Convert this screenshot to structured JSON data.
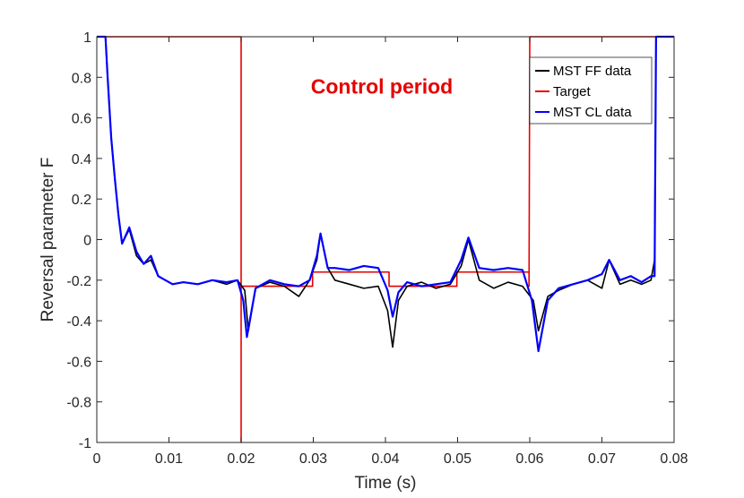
{
  "chart_data": {
    "type": "line",
    "title": "",
    "xlabel": "Time (s)",
    "ylabel": "Reversal parameter F",
    "xlim": [
      0,
      0.08
    ],
    "ylim": [
      -1,
      1
    ],
    "x_ticks": [
      0,
      0.01,
      0.02,
      0.03,
      0.04,
      0.05,
      0.06,
      0.07,
      0.08
    ],
    "x_tick_labels": [
      "0",
      "0.01",
      "0.02",
      "0.03",
      "0.04",
      "0.05",
      "0.06",
      "0.07",
      "0.08"
    ],
    "y_ticks": [
      -1,
      -0.8,
      -0.6,
      -0.4,
      -0.2,
      0,
      0.2,
      0.4,
      0.6,
      0.8,
      1
    ],
    "y_tick_labels": [
      "-1",
      "-0.8",
      "-0.6",
      "-0.4",
      "-0.2",
      "0",
      "0.2",
      "0.4",
      "0.6",
      "0.8",
      "1"
    ],
    "grid": false,
    "legend_position": "top-right",
    "annotation": {
      "text": "Control period",
      "x": 0.0395,
      "y": 0.72,
      "color": "#e60000"
    },
    "series": [
      {
        "name": "MST FF data",
        "color": "#000000",
        "x": [
          0.0,
          0.0012,
          0.0015,
          0.002,
          0.0025,
          0.003,
          0.0035,
          0.0045,
          0.0055,
          0.0065,
          0.0075,
          0.0085,
          0.0095,
          0.0105,
          0.012,
          0.014,
          0.016,
          0.018,
          0.0195,
          0.0205,
          0.021,
          0.022,
          0.024,
          0.026,
          0.028,
          0.0295,
          0.0305,
          0.031,
          0.032,
          0.033,
          0.035,
          0.037,
          0.039,
          0.0403,
          0.041,
          0.0418,
          0.043,
          0.045,
          0.047,
          0.049,
          0.0505,
          0.0515,
          0.053,
          0.055,
          0.057,
          0.059,
          0.0605,
          0.0612,
          0.0625,
          0.064,
          0.066,
          0.068,
          0.07,
          0.071,
          0.0725,
          0.074,
          0.0755,
          0.0768,
          0.0773,
          0.0775,
          0.08
        ],
        "y": [
          1.0,
          1.0,
          0.8,
          0.5,
          0.3,
          0.12,
          -0.02,
          0.05,
          -0.08,
          -0.12,
          -0.1,
          -0.18,
          -0.2,
          -0.22,
          -0.21,
          -0.22,
          -0.2,
          -0.22,
          -0.2,
          -0.25,
          -0.45,
          -0.24,
          -0.21,
          -0.23,
          -0.28,
          -0.2,
          -0.1,
          0.03,
          -0.14,
          -0.2,
          -0.22,
          -0.24,
          -0.23,
          -0.35,
          -0.53,
          -0.3,
          -0.23,
          -0.21,
          -0.24,
          -0.22,
          -0.13,
          0.0,
          -0.2,
          -0.24,
          -0.21,
          -0.23,
          -0.3,
          -0.45,
          -0.28,
          -0.25,
          -0.22,
          -0.2,
          -0.24,
          -0.1,
          -0.22,
          -0.2,
          -0.22,
          -0.2,
          -0.1,
          1.0,
          1.0
        ]
      },
      {
        "name": "Target",
        "color": "#e60000",
        "x": [
          0.0,
          0.02,
          0.02,
          0.02,
          0.0299,
          0.0299,
          0.0405,
          0.0405,
          0.0499,
          0.0499,
          0.0599,
          0.0599,
          0.06,
          0.0775,
          0.08
        ],
        "y": [
          1.0,
          1.0,
          -1.0,
          -0.23,
          -0.23,
          -0.16,
          -0.16,
          -0.23,
          -0.23,
          -0.16,
          -0.16,
          -0.23,
          1.0,
          1.0,
          1.0
        ]
      },
      {
        "name": "MST CL data",
        "color": "#0000ff",
        "x": [
          0.0,
          0.0012,
          0.0015,
          0.002,
          0.0025,
          0.003,
          0.0035,
          0.0045,
          0.0055,
          0.0065,
          0.0075,
          0.0085,
          0.0095,
          0.0105,
          0.012,
          0.014,
          0.016,
          0.018,
          0.0195,
          0.0203,
          0.0208,
          0.022,
          0.024,
          0.026,
          0.028,
          0.0295,
          0.0305,
          0.031,
          0.032,
          0.033,
          0.035,
          0.037,
          0.039,
          0.0403,
          0.041,
          0.0418,
          0.043,
          0.045,
          0.047,
          0.049,
          0.0505,
          0.0515,
          0.053,
          0.055,
          0.057,
          0.059,
          0.0603,
          0.0612,
          0.0625,
          0.064,
          0.066,
          0.068,
          0.07,
          0.071,
          0.0725,
          0.074,
          0.0755,
          0.0768,
          0.0773,
          0.0775,
          0.08
        ],
        "y": [
          1.0,
          1.0,
          0.8,
          0.5,
          0.3,
          0.12,
          -0.02,
          0.06,
          -0.06,
          -0.12,
          -0.08,
          -0.18,
          -0.2,
          -0.22,
          -0.21,
          -0.22,
          -0.2,
          -0.21,
          -0.2,
          -0.3,
          -0.48,
          -0.24,
          -0.2,
          -0.22,
          -0.23,
          -0.2,
          -0.08,
          0.03,
          -0.14,
          -0.14,
          -0.15,
          -0.13,
          -0.14,
          -0.25,
          -0.38,
          -0.26,
          -0.21,
          -0.23,
          -0.22,
          -0.21,
          -0.1,
          0.01,
          -0.14,
          -0.15,
          -0.14,
          -0.15,
          -0.3,
          -0.55,
          -0.3,
          -0.24,
          -0.22,
          -0.2,
          -0.17,
          -0.1,
          -0.2,
          -0.18,
          -0.21,
          -0.18,
          -0.18,
          1.0,
          1.0
        ]
      }
    ]
  }
}
